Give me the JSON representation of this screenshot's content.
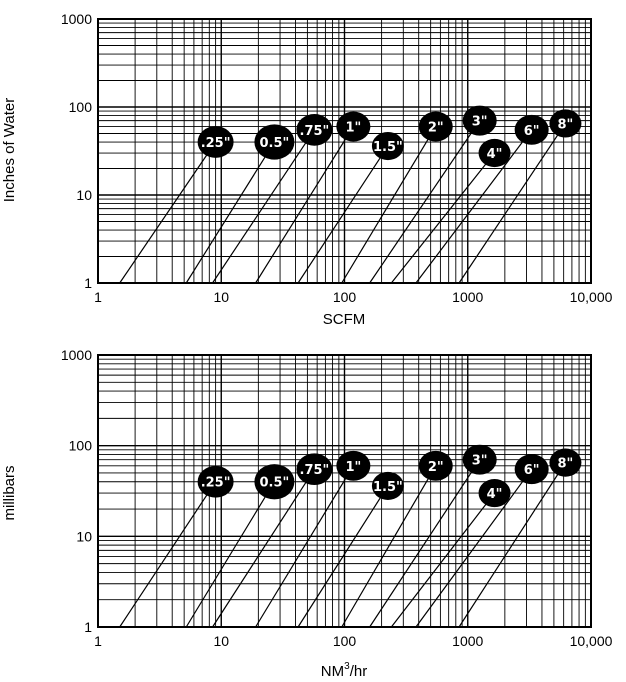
{
  "chart_data": [
    {
      "type": "line",
      "xscale": "log",
      "yscale": "log",
      "xlim": [
        1,
        10000
      ],
      "ylim": [
        1,
        1000
      ],
      "xlabel": "SCFM",
      "ylabel": "Inches of Water",
      "x_tick_labels": [
        "1",
        "10",
        "100",
        "1000",
        "10,000"
      ],
      "y_tick_labels": [
        "1",
        "10",
        "100",
        "1000"
      ],
      "grid": true,
      "series": [
        {
          "name": ".25\"",
          "points": [
            [
              1.5,
              1
            ],
            [
              9,
              40
            ]
          ]
        },
        {
          "name": "0.5\"",
          "points": [
            [
              5.2,
              1
            ],
            [
              27,
              40
            ]
          ]
        },
        {
          "name": ".75\"",
          "points": [
            [
              8.5,
              1
            ],
            [
              57,
              55
            ]
          ]
        },
        {
          "name": "1\"",
          "points": [
            [
              19,
              1
            ],
            [
              118,
              60
            ]
          ]
        },
        {
          "name": "1.5\"",
          "points": [
            [
              42,
              1
            ],
            [
              225,
              36
            ]
          ]
        },
        {
          "name": "2\"",
          "points": [
            [
              95,
              1
            ],
            [
              550,
              60
            ]
          ]
        },
        {
          "name": "3\"",
          "points": [
            [
              160,
              1
            ],
            [
              1250,
              70
            ]
          ]
        },
        {
          "name": "4\"",
          "points": [
            [
              240,
              1
            ],
            [
              1650,
              30
            ]
          ]
        },
        {
          "name": "6\"",
          "points": [
            [
              380,
              1
            ],
            [
              3300,
              55
            ]
          ]
        },
        {
          "name": "8\"",
          "points": [
            [
              850,
              1
            ],
            [
              6200,
              65
            ]
          ]
        }
      ]
    },
    {
      "type": "line",
      "xscale": "log",
      "yscale": "log",
      "xlim": [
        1,
        10000
      ],
      "ylim": [
        1,
        1000
      ],
      "xlabel": "NM³/hr",
      "xlabel_base": "NM",
      "xlabel_sup": "3",
      "xlabel_tail": "/hr",
      "ylabel": "millibars",
      "x_tick_labels": [
        "1",
        "10",
        "100",
        "1000",
        "10,000"
      ],
      "y_tick_labels": [
        "1",
        "10",
        "100",
        "1000"
      ],
      "grid": true,
      "series": [
        {
          "name": ".25\"",
          "points": [
            [
              1.5,
              1
            ],
            [
              9,
              40
            ]
          ]
        },
        {
          "name": "0.5\"",
          "points": [
            [
              5.2,
              1
            ],
            [
              27,
              40
            ]
          ]
        },
        {
          "name": ".75\"",
          "points": [
            [
              8.5,
              1
            ],
            [
              57,
              55
            ]
          ]
        },
        {
          "name": "1\"",
          "points": [
            [
              19,
              1
            ],
            [
              118,
              60
            ]
          ]
        },
        {
          "name": "1.5\"",
          "points": [
            [
              42,
              1
            ],
            [
              225,
              36
            ]
          ]
        },
        {
          "name": "2\"",
          "points": [
            [
              95,
              1
            ],
            [
              550,
              60
            ]
          ]
        },
        {
          "name": "3\"",
          "points": [
            [
              160,
              1
            ],
            [
              1250,
              70
            ]
          ]
        },
        {
          "name": "4\"",
          "points": [
            [
              240,
              1
            ],
            [
              1650,
              30
            ]
          ]
        },
        {
          "name": "6\"",
          "points": [
            [
              380,
              1
            ],
            [
              3300,
              55
            ]
          ]
        },
        {
          "name": "8\"",
          "points": [
            [
              850,
              1
            ],
            [
              6200,
              65
            ]
          ]
        }
      ]
    }
  ]
}
